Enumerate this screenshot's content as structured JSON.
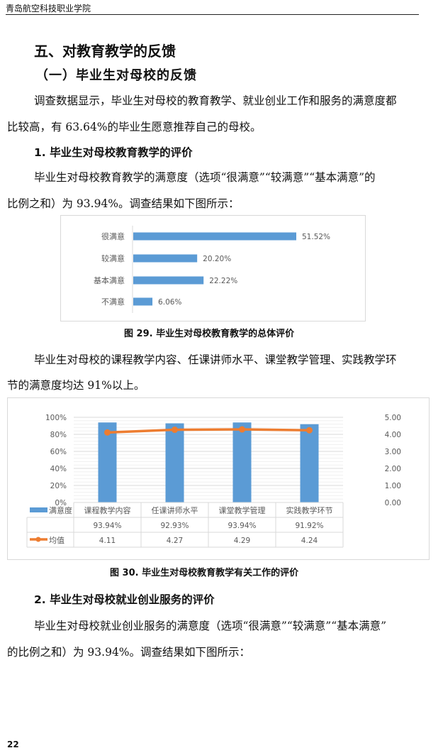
{
  "header": {
    "school": "青岛航空科技职业学院"
  },
  "section_title": "五、对教育教学的反馈",
  "subsection_title": "（一）毕业生对母校的反馈",
  "intro_lines": [
    "调查数据显示，毕业生对母校的教育教学、就业创业工作和服务的满意度都",
    "比较高，有 63.64%的毕业生愿意推荐自己的母校。"
  ],
  "item1": {
    "title": "1. 毕业生对母校教育教学的评价",
    "lines": [
      "毕业生对母校教育教学的满意度（选项“很满意”“较满意”“基本满意”的",
      "比例之和）为 93.94%。调查结果如下图所示："
    ]
  },
  "para2_lines": [
    "毕业生对母校的课程教学内容、任课讲师水平、课堂教学管理、实践教学环",
    "节的满意度均达 91%以上。"
  ],
  "item2": {
    "title": "2. 毕业生对母校就业创业服务的评价",
    "lines": [
      "毕业生对母校就业创业服务的满意度（选项“很满意”“较满意”“基本满意”",
      "的比例之和）为 93.94%。调查结果如下图所示："
    ]
  },
  "page_number": "22",
  "chart_data": [
    {
      "type": "bar",
      "orientation": "horizontal",
      "caption": "图 29. 毕业生对母校教育教学的总体评价",
      "categories": [
        "很满意",
        "较满意",
        "基本满意",
        "不满意"
      ],
      "values": [
        51.52,
        20.2,
        22.22,
        6.06
      ],
      "labels": [
        "51.52%",
        "20.20%",
        "22.22%",
        "6.06%"
      ],
      "color": "#5b9bd5",
      "grid": false
    },
    {
      "type": "bar+line",
      "caption": "图 30. 毕业生对母校教育教学有关工作的评价",
      "categories": [
        "课程教学内容",
        "任课讲师水平",
        "课堂教学管理",
        "实践教学环节"
      ],
      "series": [
        {
          "name": "满意度",
          "type": "bar",
          "axis": "left",
          "values": [
            93.94,
            92.93,
            93.94,
            91.92
          ],
          "labels": [
            "93.94%",
            "92.93%",
            "93.94%",
            "91.92%"
          ],
          "color": "#5b9bd5"
        },
        {
          "name": "均值",
          "type": "line",
          "axis": "right",
          "values": [
            4.11,
            4.27,
            4.29,
            4.24
          ],
          "labels": [
            "4.11",
            "4.27",
            "4.29",
            "4.24"
          ],
          "color": "#ed7d31"
        }
      ],
      "left_ticks": [
        "0%",
        "20%",
        "40%",
        "60%",
        "80%",
        "100%"
      ],
      "ylim_left": [
        0,
        100
      ],
      "right_ticks": [
        "0.00",
        "1.00",
        "2.00",
        "3.00",
        "4.00",
        "5.00"
      ],
      "ylim_right": [
        0,
        5
      ],
      "grid": true,
      "legend": "data-table"
    }
  ]
}
